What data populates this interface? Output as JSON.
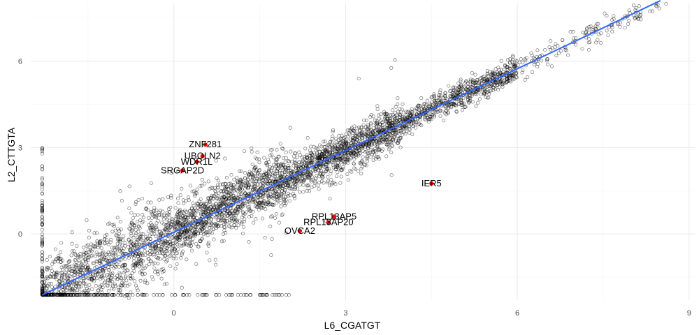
{
  "chart_data": {
    "type": "scatter",
    "title": "",
    "xlabel": "L6_CGATGT",
    "ylabel": "L2_CTTGTA",
    "xlim": [
      -2.5,
      9.1
    ],
    "ylim": [
      -2.3,
      8.0
    ],
    "x_ticks": [
      0,
      3,
      6,
      9
    ],
    "y_ticks": [
      0,
      3,
      6
    ],
    "x_tick_labels": [
      "0",
      "3",
      "6",
      "9"
    ],
    "y_tick_labels": [
      "0",
      "3",
      "6"
    ],
    "grid": true,
    "legend": "none",
    "trend_line": {
      "method": "linear",
      "color": "#3366ff",
      "x": [
        -2.3,
        8.5
      ],
      "y": [
        -2.12,
        8.1
      ]
    },
    "point_color": "#000000",
    "highlight_color": "#ff0000",
    "highlighted_genes": [
      {
        "label": "ZNF281",
        "x": 0.55,
        "y": 3.1
      },
      {
        "label": "UBQLN2",
        "x": 0.5,
        "y": 2.7
      },
      {
        "label": "WDR1L",
        "x": 0.4,
        "y": 2.5
      },
      {
        "label": "SRGAP2D",
        "x": 0.15,
        "y": 2.2
      },
      {
        "label": "IER5",
        "x": 4.5,
        "y": 1.75
      },
      {
        "label": "RPL13AP5",
        "x": 2.8,
        "y": 0.6
      },
      {
        "label": "RPL13AP20",
        "x": 2.7,
        "y": 0.4
      },
      {
        "label": "OVCA2",
        "x": 2.2,
        "y": 0.1
      }
    ]
  }
}
